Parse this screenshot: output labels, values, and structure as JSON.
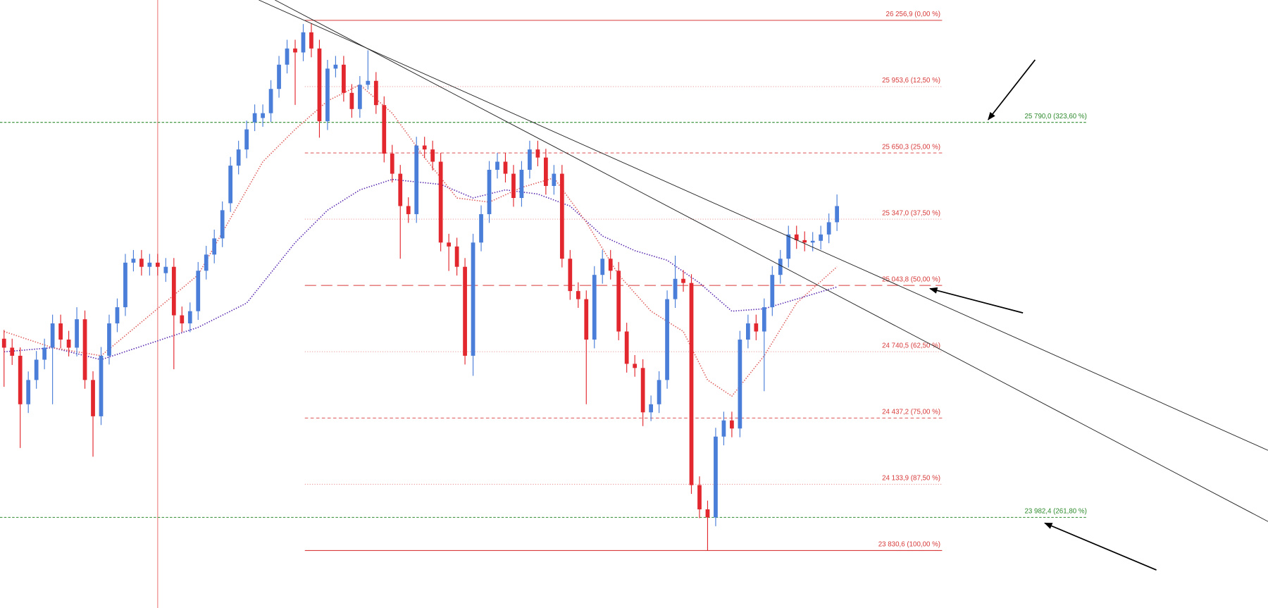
{
  "chart_data": {
    "type": "candlestick",
    "ylim": [
      23567.6,
      26350
    ],
    "up_color": "#4a7ed8",
    "down_color": "#e2282e",
    "candles": {
      "open": [
        24800,
        24759,
        24722,
        24500,
        24611,
        24704,
        24759,
        24870,
        24796,
        24759,
        24889,
        24611,
        24445,
        24722,
        24870,
        24944,
        25148,
        25166,
        25129,
        25148,
        25100,
        25129,
        24907,
        24870,
        24926,
        25111,
        25185,
        25259,
        25420,
        25592,
        25666,
        25790,
        25810,
        25832,
        25943,
        26054,
        26128,
        26110,
        26202,
        26128,
        25795,
        26036,
        26054,
        25925,
        25851,
        25962,
        25980,
        25869,
        25647,
        25555,
        25407,
        25370,
        25684,
        25666,
        25610,
        25240,
        25222,
        25129,
        24722,
        25240,
        25370,
        25573,
        25610,
        25555,
        25444,
        25573,
        25666,
        25629,
        25499,
        25555,
        25166,
        25018,
        24981,
        24796,
        25092,
        25166,
        25111,
        24833,
        24685,
        24666,
        24463,
        24500,
        24611,
        24981,
        25074,
        25055,
        24130,
        24019,
        23982,
        24352,
        24426,
        24389,
        24796,
        24870,
        24833,
        24944,
        25092,
        25166,
        25277,
        25251,
        25240,
        25248,
        25277,
        25333
      ],
      "high": [
        24840,
        24800,
        24760,
        24650,
        24744,
        24800,
        24910,
        24910,
        24836,
        24944,
        24929,
        24651,
        24762,
        24910,
        24984,
        25188,
        25206,
        25206,
        25188,
        25188,
        25169,
        25169,
        24947,
        24966,
        25151,
        25225,
        25299,
        25428,
        25632,
        25706,
        25798,
        25872,
        25872,
        25983,
        26094,
        26168,
        26168,
        26240,
        26242,
        26168,
        26076,
        26094,
        26094,
        25965,
        26002,
        26120,
        26020,
        25909,
        25687,
        25595,
        25447,
        25724,
        25724,
        25706,
        25650,
        25280,
        25262,
        25169,
        25280,
        25410,
        25613,
        25650,
        25650,
        25595,
        25613,
        25706,
        25706,
        25669,
        25595,
        25595,
        25206,
        25058,
        25021,
        25132,
        25206,
        25206,
        25151,
        24873,
        24725,
        24706,
        24540,
        24651,
        25021,
        25180,
        25114,
        25095,
        24170,
        24059,
        24392,
        24466,
        24466,
        24836,
        24910,
        24910,
        24984,
        25132,
        25206,
        25317,
        25317,
        25291,
        25288,
        25317,
        25373,
        25460
      ],
      "low": [
        24580,
        24680,
        24300,
        24460,
        24571,
        24660,
        24500,
        24756,
        24719,
        24719,
        24571,
        24260,
        24405,
        24682,
        24830,
        24904,
        25108,
        25089,
        25089,
        25089,
        25060,
        24660,
        24830,
        24830,
        24886,
        25071,
        25145,
        25219,
        25380,
        25552,
        25626,
        25750,
        25770,
        25792,
        25903,
        26014,
        25870,
        26070,
        26088,
        25720,
        25755,
        25996,
        25885,
        25811,
        25811,
        25940,
        25829,
        25607,
        25515,
        25166,
        25330,
        25330,
        25626,
        25570,
        25200,
        25110,
        25089,
        24682,
        24630,
        25200,
        25330,
        25533,
        25515,
        25404,
        25404,
        25533,
        25589,
        25459,
        25459,
        25126,
        24978,
        24941,
        24500,
        24756,
        25052,
        25071,
        24793,
        24645,
        24626,
        24400,
        24423,
        24460,
        24571,
        24941,
        25015,
        24090,
        23979,
        23830,
        23942,
        24312,
        24349,
        24349,
        24756,
        24793,
        24560,
        24904,
        25052,
        25126,
        25211,
        25200,
        25200,
        25208,
        25237,
        25293
      ],
      "close": [
        24759,
        24722,
        24500,
        24611,
        24704,
        24759,
        24870,
        24796,
        24759,
        24889,
        24611,
        24445,
        24722,
        24870,
        24944,
        25148,
        25166,
        25129,
        25148,
        25129,
        25129,
        24907,
        24870,
        24926,
        25111,
        25185,
        25259,
        25388,
        25592,
        25666,
        25758,
        25832,
        25832,
        25943,
        26054,
        26128,
        26110,
        26202,
        26128,
        25795,
        26036,
        26054,
        25925,
        25851,
        25962,
        25980,
        25869,
        25647,
        25555,
        25407,
        25370,
        25684,
        25666,
        25610,
        25240,
        25222,
        25129,
        24722,
        25240,
        25370,
        25573,
        25610,
        25555,
        25444,
        25573,
        25666,
        25629,
        25499,
        25555,
        25166,
        25018,
        24981,
        24796,
        25092,
        25166,
        25111,
        24833,
        24685,
        24666,
        24463,
        24500,
        24611,
        24981,
        25074,
        25055,
        24130,
        24019,
        23982,
        24352,
        24426,
        24389,
        24796,
        24870,
        24833,
        24944,
        25092,
        25166,
        25277,
        25251,
        25240,
        25248,
        25277,
        25333,
        25407
      ]
    },
    "moving_averages": [
      {
        "color": "#5a2ab0",
        "x": [
          0,
          6,
          12,
          18,
          24,
          30,
          36,
          40,
          44,
          48,
          54,
          58,
          62,
          66,
          70,
          74,
          78,
          82,
          86,
          90,
          94,
          98,
          103
        ],
        "values": [
          24740,
          24759,
          24704,
          24778,
          24852,
          24963,
          25240,
          25388,
          25481,
          25529,
          25506,
          25444,
          25481,
          25462,
          25407,
          25270,
          25203,
          25159,
          25055,
          24926,
          24937,
          24981,
          25037
        ]
      },
      {
        "color": "#e06060",
        "x": [
          0,
          6,
          12,
          18,
          24,
          28,
          32,
          36,
          40,
          44,
          48,
          52,
          56,
          60,
          64,
          68,
          72,
          76,
          80,
          84,
          87,
          90,
          94,
          98,
          103
        ],
        "values": [
          24833,
          24759,
          24722,
          24907,
          25092,
          25351,
          25610,
          25758,
          25888,
          25962,
          25832,
          25629,
          25444,
          25425,
          25492,
          25536,
          25333,
          25092,
          24926,
          24833,
          24611,
          24537,
          24722,
          24963,
          25129
        ]
      }
    ],
    "fib_levels": [
      {
        "value": 26256.9,
        "label": "26 256,9 (0,00 %)",
        "style": "solid"
      },
      {
        "value": 25953.6,
        "label": "25 953,6 (12,50 %)",
        "style": "dotted"
      },
      {
        "value": 25650.3,
        "label": "25 650,3 (25,00 %)",
        "style": "dashed"
      },
      {
        "value": 25347.0,
        "label": "25 347,0 (37,50 %)",
        "style": "dotted"
      },
      {
        "value": 25043.8,
        "label": "25 043,8 (50,00 %)",
        "style": "longdash"
      },
      {
        "value": 24740.5,
        "label": "24 740,5 (62,50 %)",
        "style": "dotted"
      },
      {
        "value": 24437.2,
        "label": "24 437,2 (75,00 %)",
        "style": "dashed"
      },
      {
        "value": 24133.9,
        "label": "24 133,9 (87,50 %)",
        "style": "dotted"
      },
      {
        "value": 23830.6,
        "label": "23 830,6 (100,00 %)",
        "style": "solid"
      }
    ],
    "fib_color": "#d83a3a",
    "extension_levels": [
      {
        "value": 25790.0,
        "label": "25 790,0 (323,60 %)"
      },
      {
        "value": 23982.4,
        "label": "23 982,4 (261,80 %)"
      }
    ],
    "extension_color": "#2e8b2e"
  }
}
